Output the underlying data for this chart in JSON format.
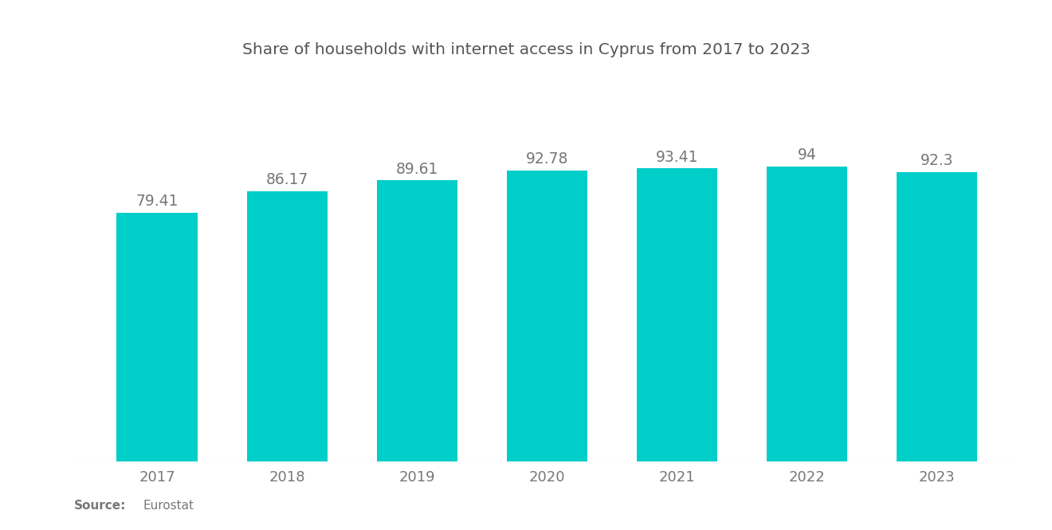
{
  "title": "Share of households with internet access in Cyprus from 2017 to 2023",
  "years": [
    "2017",
    "2018",
    "2019",
    "2020",
    "2021",
    "2022",
    "2023"
  ],
  "values": [
    79.41,
    86.17,
    89.61,
    92.78,
    93.41,
    94,
    92.3
  ],
  "bar_color": "#00CEC8",
  "label_color": "#777777",
  "title_color": "#555555",
  "background_color": "#ffffff",
  "source_bold": "Source:",
  "source_normal": "  Eurostat",
  "ylim": [
    0,
    110
  ],
  "bar_width": 0.62
}
